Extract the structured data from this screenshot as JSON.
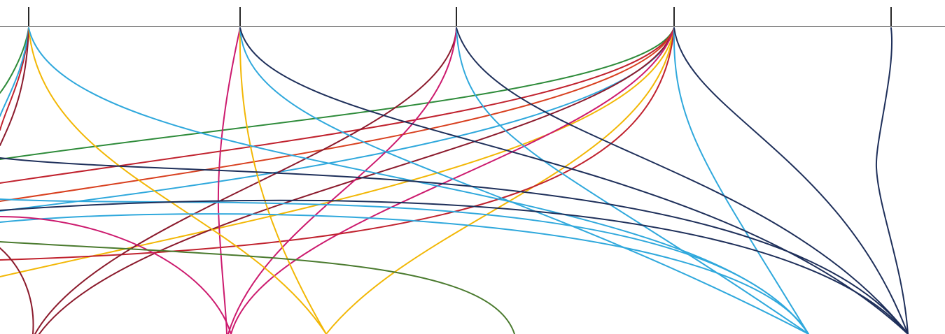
{
  "palette": {
    "green": "#2e8b3a",
    "crimson": "#c0222e",
    "orange_red": "#d8401f",
    "cyan": "#2fa8dc",
    "navy": "#1e2f5a",
    "yellow": "#f2b705",
    "maroon": "#8b1a2c",
    "magenta": "#cc1a6e",
    "olive": "#4a7a2e"
  },
  "nodes": [
    {
      "id": "top-1",
      "color": "navy"
    },
    {
      "id": "top-2",
      "color": "navy"
    },
    {
      "id": "top-3",
      "color": "navy"
    },
    {
      "id": "top-4",
      "color": "navy"
    },
    {
      "id": "top-5",
      "color": "navy"
    }
  ],
  "flows": [
    {
      "name": "flow-green-top4-left",
      "color": "green"
    },
    {
      "name": "flow-crimson-top4-left",
      "color": "crimson"
    },
    {
      "name": "flow-orange-top4-left",
      "color": "orange_red"
    },
    {
      "name": "flow-cyan-top4-left",
      "color": "cyan"
    },
    {
      "name": "flow-yellow-top4-left",
      "color": "yellow"
    },
    {
      "name": "flow-maroon-top4-bottom",
      "color": "maroon"
    },
    {
      "name": "flow-magenta-top4-bottom",
      "color": "magenta"
    },
    {
      "name": "flow-yellow-top4-bottom",
      "color": "yellow"
    },
    {
      "name": "flow-crimson-top4-left-low",
      "color": "crimson"
    },
    {
      "name": "flow-cyan-top4-bottom",
      "color": "cyan"
    },
    {
      "name": "flow-navy-top4-bottom",
      "color": "navy"
    },
    {
      "name": "flow-navy-top5-bottom",
      "color": "navy"
    },
    {
      "name": "flow-maroon-top3-bottom",
      "color": "maroon"
    },
    {
      "name": "flow-magenta-top3-bottom",
      "color": "magenta"
    },
    {
      "name": "flow-cyan-top3-bottom",
      "color": "cyan"
    },
    {
      "name": "flow-navy-top3-bottom",
      "color": "navy"
    },
    {
      "name": "flow-magenta-top2-bottom",
      "color": "magenta"
    },
    {
      "name": "flow-yellow-top2-bottom",
      "color": "yellow"
    },
    {
      "name": "flow-cyan-top2-bottom",
      "color": "cyan"
    },
    {
      "name": "flow-navy-top2-bottom",
      "color": "navy"
    },
    {
      "name": "flow-green-top1-left",
      "color": "green"
    },
    {
      "name": "flow-crimson-top1-left",
      "color": "crimson"
    },
    {
      "name": "flow-cyan-top1-left",
      "color": "cyan"
    },
    {
      "name": "flow-maroon-top1-left",
      "color": "maroon"
    },
    {
      "name": "flow-yellow-top1-bottom",
      "color": "yellow"
    },
    {
      "name": "flow-cyan-top1-bottom",
      "color": "cyan"
    },
    {
      "name": "flow-navy-left-bottom",
      "color": "navy"
    },
    {
      "name": "flow-cyan-left-bottom-a",
      "color": "cyan"
    },
    {
      "name": "flow-navy-left-bottom-a",
      "color": "navy"
    },
    {
      "name": "flow-cyan-left-bottom-b",
      "color": "cyan"
    },
    {
      "name": "flow-magenta-left-bottom",
      "color": "magenta"
    },
    {
      "name": "flow-olive-left-bottom",
      "color": "olive"
    },
    {
      "name": "flow-maroon-left-bottom",
      "color": "maroon"
    }
  ]
}
